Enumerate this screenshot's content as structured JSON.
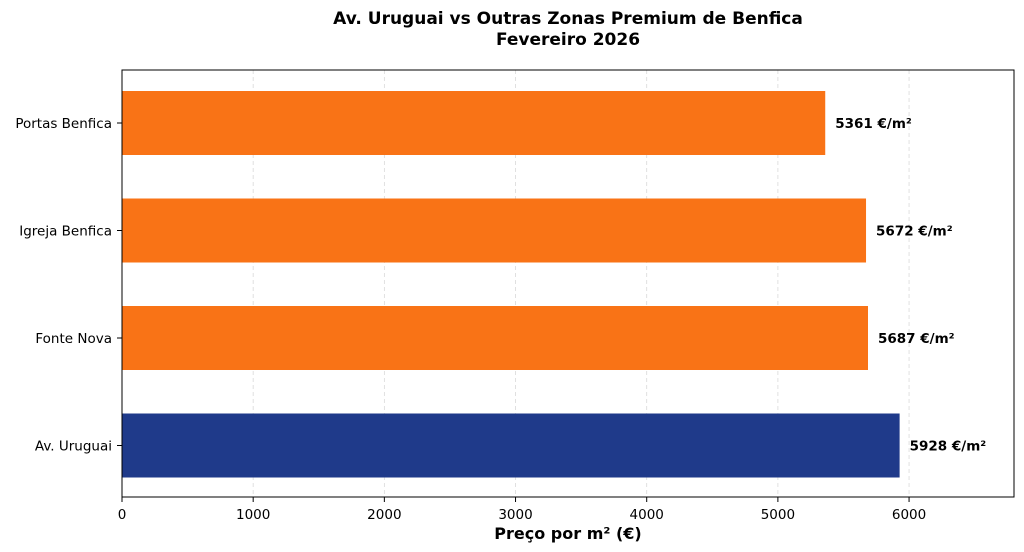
{
  "chart_data": {
    "type": "bar",
    "orientation": "horizontal",
    "title_line1": "Av. Uruguai vs Outras Zonas Premium de Benfica",
    "title_line2": "Fevereiro 2026",
    "xlabel": "Preço por m² (€)",
    "ylabel": "",
    "categories": [
      "Av. Uruguai",
      "Fonte Nova",
      "Igreja Benfica",
      "Portas Benfica"
    ],
    "values": [
      5928,
      5687,
      5672,
      5361
    ],
    "value_labels": [
      "5928 €/m²",
      "5687 €/m²",
      "5672 €/m²",
      "5361 €/m²"
    ],
    "colors": [
      "#1f3a8a",
      "#f97316",
      "#f97316",
      "#f97316"
    ],
    "xlim": [
      0,
      6800
    ],
    "xticks": [
      0,
      1000,
      2000,
      3000,
      4000,
      5000,
      6000
    ],
    "xtick_labels": [
      "0",
      "1000",
      "2000",
      "3000",
      "4000",
      "5000",
      "6000"
    ],
    "grid": "x-dashed",
    "legend": "none"
  }
}
